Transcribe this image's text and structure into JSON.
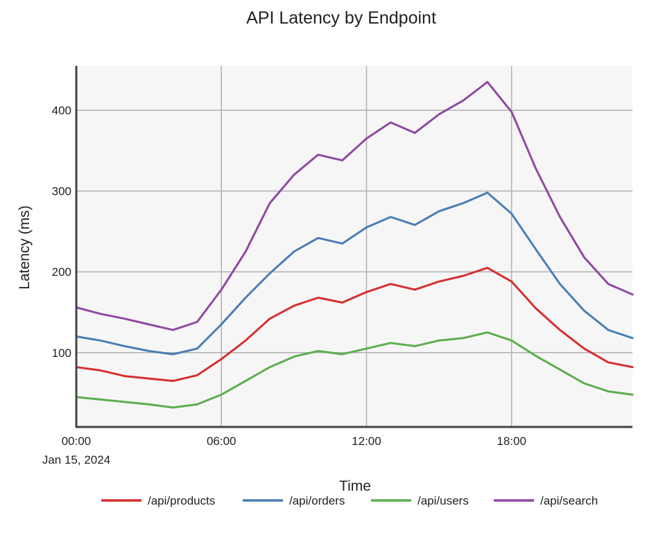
{
  "chart_data": {
    "type": "line",
    "title": "API Latency by Endpoint",
    "xlabel": "Time",
    "ylabel": "Latency (ms)",
    "x_hours": [
      0,
      1,
      2,
      3,
      4,
      5,
      6,
      7,
      8,
      9,
      10,
      11,
      12,
      13,
      14,
      15,
      16,
      17,
      18,
      19,
      20,
      21,
      22,
      23
    ],
    "xlim": [
      0,
      23
    ],
    "ylim": [
      8,
      455
    ],
    "x_ticks": [
      {
        "value": 0,
        "label": "00:00",
        "sublabel": "Jan 15, 2024"
      },
      {
        "value": 6,
        "label": "06:00"
      },
      {
        "value": 12,
        "label": "12:00"
      },
      {
        "value": 18,
        "label": "18:00"
      }
    ],
    "y_ticks": [
      {
        "value": 100,
        "label": "100"
      },
      {
        "value": 200,
        "label": "200"
      },
      {
        "value": 300,
        "label": "300"
      },
      {
        "value": 400,
        "label": "400"
      }
    ],
    "grid": true,
    "legend_position": "bottom",
    "series": [
      {
        "name": "/api/products",
        "color": "#d62f2f",
        "values": [
          82,
          78,
          71,
          68,
          65,
          72,
          92,
          115,
          142,
          158,
          168,
          162,
          175,
          185,
          178,
          188,
          195,
          205,
          188,
          155,
          128,
          105,
          88,
          82
        ]
      },
      {
        "name": "/api/orders",
        "color": "#4a7db5",
        "values": [
          120,
          115,
          108,
          102,
          98,
          105,
          135,
          168,
          198,
          225,
          242,
          235,
          255,
          268,
          258,
          275,
          285,
          298,
          272,
          228,
          185,
          152,
          128,
          118
        ]
      },
      {
        "name": "/api/users",
        "color": "#5cae4e",
        "values": [
          45,
          42,
          39,
          36,
          32,
          36,
          48,
          65,
          82,
          95,
          102,
          98,
          105,
          112,
          108,
          115,
          118,
          125,
          115,
          96,
          79,
          62,
          52,
          48
        ]
      },
      {
        "name": "/api/search",
        "color": "#9049a3",
        "values": [
          156,
          148,
          142,
          135,
          128,
          138,
          178,
          225,
          285,
          320,
          345,
          338,
          365,
          385,
          372,
          395,
          412,
          435,
          398,
          328,
          268,
          218,
          185,
          172
        ]
      }
    ]
  }
}
